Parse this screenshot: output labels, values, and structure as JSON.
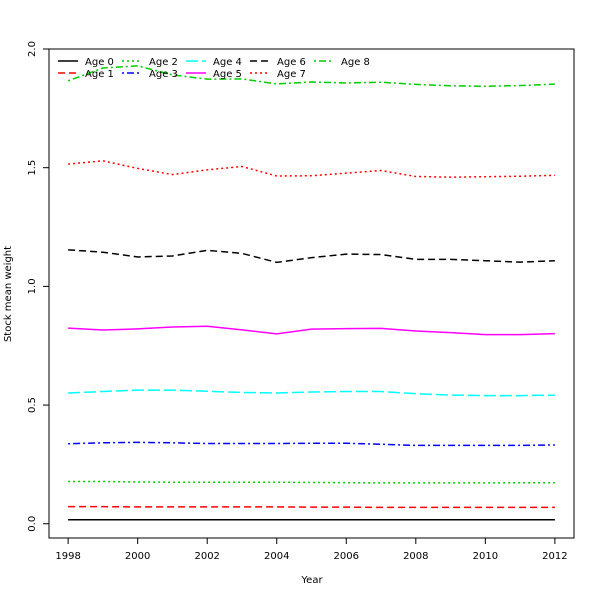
{
  "chart_data": {
    "type": "line",
    "title": "",
    "xlabel": "Year",
    "ylabel": "Stock mean weight",
    "xlim": [
      1997.45,
      2012.55
    ],
    "ylim": [
      -0.06,
      2.0
    ],
    "xticks": [
      1998,
      2000,
      2002,
      2004,
      2006,
      2008,
      2010,
      2012
    ],
    "yticks": [
      0.0,
      0.5,
      1.0,
      1.5,
      2.0
    ],
    "ytick_labels": [
      "0.0",
      "0.5",
      "1.0",
      "1.5",
      "2.0"
    ],
    "grid": false,
    "legend_position": "top-left",
    "x": [
      1998,
      1999,
      2000,
      2001,
      2002,
      2003,
      2004,
      2005,
      2006,
      2007,
      2008,
      2009,
      2010,
      2011,
      2012
    ],
    "series": [
      {
        "name": "Age 0",
        "color": "#000000",
        "dash": "",
        "values": [
          0.017,
          0.017,
          0.017,
          0.017,
          0.017,
          0.017,
          0.017,
          0.017,
          0.017,
          0.017,
          0.017,
          0.017,
          0.017,
          0.017,
          0.017
        ]
      },
      {
        "name": "Age 1",
        "color": "#ff0000",
        "dash": "7,4",
        "values": [
          0.072,
          0.072,
          0.071,
          0.071,
          0.071,
          0.071,
          0.071,
          0.07,
          0.07,
          0.069,
          0.069,
          0.069,
          0.069,
          0.069,
          0.069
        ]
      },
      {
        "name": "Age 2",
        "color": "#00cd00",
        "dash": "2,3",
        "values": [
          0.178,
          0.178,
          0.176,
          0.175,
          0.175,
          0.175,
          0.175,
          0.174,
          0.173,
          0.172,
          0.172,
          0.172,
          0.172,
          0.173,
          0.173
        ]
      },
      {
        "name": "Age 3",
        "color": "#0000ff",
        "dash": "2,3,7,3",
        "values": [
          0.337,
          0.341,
          0.343,
          0.341,
          0.338,
          0.338,
          0.338,
          0.339,
          0.339,
          0.335,
          0.33,
          0.33,
          0.33,
          0.33,
          0.332
        ]
      },
      {
        "name": "Age 4",
        "color": "#00ffff",
        "dash": "12,4",
        "values": [
          0.551,
          0.557,
          0.563,
          0.563,
          0.558,
          0.553,
          0.551,
          0.555,
          0.557,
          0.557,
          0.548,
          0.542,
          0.54,
          0.54,
          0.542
        ]
      },
      {
        "name": "Age 5",
        "color": "#ff00ff",
        "dash": "",
        "values": [
          0.824,
          0.816,
          0.821,
          0.829,
          0.832,
          0.817,
          0.8,
          0.82,
          0.822,
          0.823,
          0.812,
          0.805,
          0.797,
          0.797,
          0.801
        ]
      },
      {
        "name": "Age 6",
        "color": "#000000",
        "dash": "7,4",
        "values": [
          1.154,
          1.144,
          1.124,
          1.128,
          1.152,
          1.139,
          1.101,
          1.121,
          1.136,
          1.134,
          1.114,
          1.114,
          1.108,
          1.102,
          1.108
        ]
      },
      {
        "name": "Age 7",
        "color": "#ff0000",
        "dash": "2,3",
        "values": [
          1.515,
          1.529,
          1.497,
          1.471,
          1.491,
          1.505,
          1.465,
          1.466,
          1.477,
          1.488,
          1.463,
          1.46,
          1.462,
          1.464,
          1.468
        ]
      },
      {
        "name": "Age 8",
        "color": "#00cd00",
        "dash": "2,3,7,3",
        "values": [
          1.866,
          1.92,
          1.929,
          1.891,
          1.873,
          1.874,
          1.853,
          1.861,
          1.857,
          1.86,
          1.851,
          1.845,
          1.843,
          1.846,
          1.852
        ]
      }
    ]
  }
}
